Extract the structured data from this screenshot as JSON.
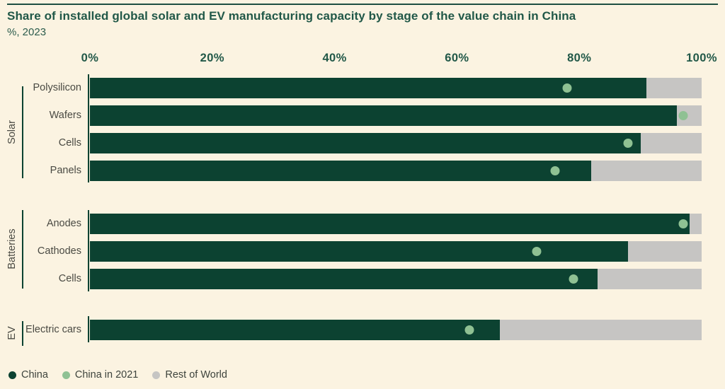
{
  "page": {
    "title": "Share of installed global solar and EV manufacturing capacity by stage of the value chain in China",
    "subtitle": "%, 2023"
  },
  "colors": {
    "background": "#fbf3e1",
    "china": "#0c4231",
    "china_2021": "#8fc193",
    "rest_of_world": "#c6c5c3",
    "heading": "#215848",
    "labels": "#4a4a43"
  },
  "chart_data": {
    "type": "bar",
    "orientation": "horizontal",
    "unit": "%",
    "xlim": [
      0,
      100
    ],
    "grid": false,
    "x_tick_labels": [
      "0%",
      "20%",
      "40%",
      "60%",
      "80%",
      "100%"
    ],
    "x_tick_values": [
      0,
      20,
      40,
      60,
      80,
      100
    ],
    "legend_position": "bottom-left",
    "legend": [
      {
        "label": "China",
        "color": "#0c4231"
      },
      {
        "label": "China in 2021",
        "color": "#8fc193"
      },
      {
        "label": "Rest of World",
        "color": "#c6c5c3"
      }
    ],
    "groups": [
      {
        "name": "Solar",
        "rows": [
          {
            "label": "Polysilicon",
            "china": 91,
            "china_2021": 78,
            "rest_of_world": 9
          },
          {
            "label": "Wafers",
            "china": 96,
            "china_2021": 97,
            "rest_of_world": 4
          },
          {
            "label": "Cells",
            "china": 90,
            "china_2021": 88,
            "rest_of_world": 10
          },
          {
            "label": "Panels",
            "china": 82,
            "china_2021": 76,
            "rest_of_world": 18
          }
        ]
      },
      {
        "name": "Batteries",
        "rows": [
          {
            "label": "Anodes",
            "china": 98,
            "china_2021": 97,
            "rest_of_world": 2
          },
          {
            "label": "Cathodes",
            "china": 88,
            "china_2021": 73,
            "rest_of_world": 12
          },
          {
            "label": "Cells",
            "china": 83,
            "china_2021": 79,
            "rest_of_world": 17
          }
        ]
      },
      {
        "name": "EV",
        "rows": [
          {
            "label": "Electric cars",
            "china": 67,
            "china_2021": 62,
            "rest_of_world": 33
          }
        ]
      }
    ]
  }
}
